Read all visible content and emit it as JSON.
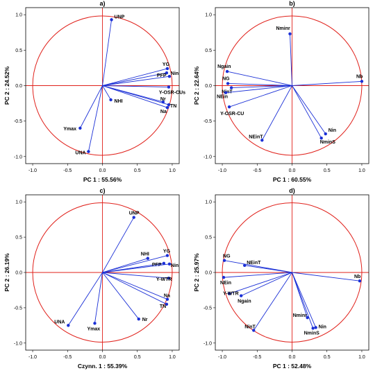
{
  "colors": {
    "vector": "#1a2fd6",
    "circle": "#e0201a",
    "frame": "#000000"
  },
  "chart_data": [
    {
      "type": "scatter",
      "title": "a)",
      "xlabel": "PC 1 : 55.56%",
      "ylabel": "PC 2 : 24.52%",
      "xlim": [
        -1.1,
        1.1
      ],
      "ylim": [
        -1.1,
        1.1
      ],
      "xticks": [
        "-1.0",
        "-0.5",
        "0.0",
        "0.5",
        "1.0"
      ],
      "yticks": [
        "-1.0",
        "-0.5",
        "0.0",
        "0.5",
        "1.0"
      ],
      "points": [
        {
          "name": "UNP",
          "x": 0.13,
          "y": 0.93
        },
        {
          "name": "YG",
          "x": 0.93,
          "y": 0.24
        },
        {
          "name": "PFP",
          "x": 0.92,
          "y": 0.18
        },
        {
          "name": "Nin",
          "x": 0.96,
          "y": 0.13
        },
        {
          "name": "Y-OSR-CUs",
          "x": 0.95,
          "y": -0.02
        },
        {
          "name": "Nr",
          "x": 0.87,
          "y": -0.23
        },
        {
          "name": "TN",
          "x": 0.95,
          "y": -0.27
        },
        {
          "name": "Na",
          "x": 0.93,
          "y": -0.31
        },
        {
          "name": "NHI",
          "x": 0.12,
          "y": -0.2
        },
        {
          "name": "Ymax",
          "x": -0.32,
          "y": -0.6
        },
        {
          "name": "UNA",
          "x": -0.2,
          "y": -0.93
        }
      ]
    },
    {
      "type": "scatter",
      "title": "b)",
      "xlabel": "PC 1 : 60.55%",
      "ylabel": "PC 2 : 22.64%",
      "xlim": [
        -1.1,
        1.1
      ],
      "ylim": [
        -1.1,
        1.1
      ],
      "xticks": [
        "-1.0",
        "-0.5",
        "0.0",
        "0.5",
        "1.0"
      ],
      "yticks": [
        "-1.0",
        "-0.5",
        "0.0",
        "0.5",
        "1.0"
      ],
      "points": [
        {
          "name": "Nminr",
          "x": -0.03,
          "y": 0.73
        },
        {
          "name": "Nb",
          "x": 1.0,
          "y": 0.06
        },
        {
          "name": "Ngain",
          "x": -0.93,
          "y": 0.2
        },
        {
          "name": "NG",
          "x": -0.92,
          "y": 0.03
        },
        {
          "name": "NinT",
          "x": -0.87,
          "y": -0.03
        },
        {
          "name": "NEin",
          "x": -0.95,
          "y": -0.1
        },
        {
          "name": "Y-OSR-CU",
          "x": -0.9,
          "y": -0.3
        },
        {
          "name": "NEinT",
          "x": -0.43,
          "y": -0.77
        },
        {
          "name": "Nin",
          "x": 0.48,
          "y": -0.68
        },
        {
          "name": "NminS",
          "x": 0.42,
          "y": -0.74
        }
      ]
    },
    {
      "type": "scatter",
      "title": "c)",
      "xlabel": "Czynn. 1 : 55.39%",
      "ylabel": "PC 2 : 26.19%",
      "xlim": [
        -1.1,
        1.1
      ],
      "ylim": [
        -1.1,
        1.1
      ],
      "xticks": [
        "-1.0",
        "-0.5",
        "0.0",
        "0.5",
        "1.0"
      ],
      "yticks": [
        "-1.0",
        "-0.5",
        "0.0",
        "0.5",
        "1.0"
      ],
      "points": [
        {
          "name": "UNP",
          "x": 0.45,
          "y": 0.78
        },
        {
          "name": "YG",
          "x": 0.93,
          "y": 0.24
        },
        {
          "name": "NHI",
          "x": 0.65,
          "y": 0.2
        },
        {
          "name": "PFP",
          "x": 0.88,
          "y": 0.13
        },
        {
          "name": "Nin",
          "x": 0.96,
          "y": 0.12
        },
        {
          "name": "Y-WTR",
          "x": 0.95,
          "y": -0.08
        },
        {
          "name": "Na",
          "x": 0.93,
          "y": -0.38
        },
        {
          "name": "TN",
          "x": 0.92,
          "y": -0.45
        },
        {
          "name": "Nr",
          "x": 0.52,
          "y": -0.66
        },
        {
          "name": "Ymax",
          "x": -0.11,
          "y": -0.72
        },
        {
          "name": "UNA",
          "x": -0.49,
          "y": -0.75
        }
      ]
    },
    {
      "type": "scatter",
      "title": "d)",
      "xlabel": "PC 1 : 52.48%",
      "ylabel": "PC 2 : 25.97%",
      "xlim": [
        -1.1,
        1.1
      ],
      "ylim": [
        -1.1,
        1.1
      ],
      "xticks": [
        "-1.0",
        "-0.5",
        "0.0",
        "0.5",
        "1.0"
      ],
      "yticks": [
        "-1.0",
        "-0.5",
        "0.0",
        "0.5",
        "1.0"
      ],
      "points": [
        {
          "name": "NG",
          "x": -0.97,
          "y": 0.17
        },
        {
          "name": "NEinT",
          "x": -0.68,
          "y": 0.1
        },
        {
          "name": "NEin",
          "x": -0.98,
          "y": -0.07
        },
        {
          "name": "Nb",
          "x": 0.97,
          "y": -0.12
        },
        {
          "name": "Y-WTR",
          "x": -0.9,
          "y": -0.3
        },
        {
          "name": "Ngain",
          "x": -0.73,
          "y": -0.33
        },
        {
          "name": "NinT",
          "x": -0.55,
          "y": -0.82
        },
        {
          "name": "Nminr",
          "x": 0.22,
          "y": -0.64
        },
        {
          "name": "Nin",
          "x": 0.34,
          "y": -0.78
        },
        {
          "name": "NminS",
          "x": 0.3,
          "y": -0.79
        }
      ]
    }
  ]
}
